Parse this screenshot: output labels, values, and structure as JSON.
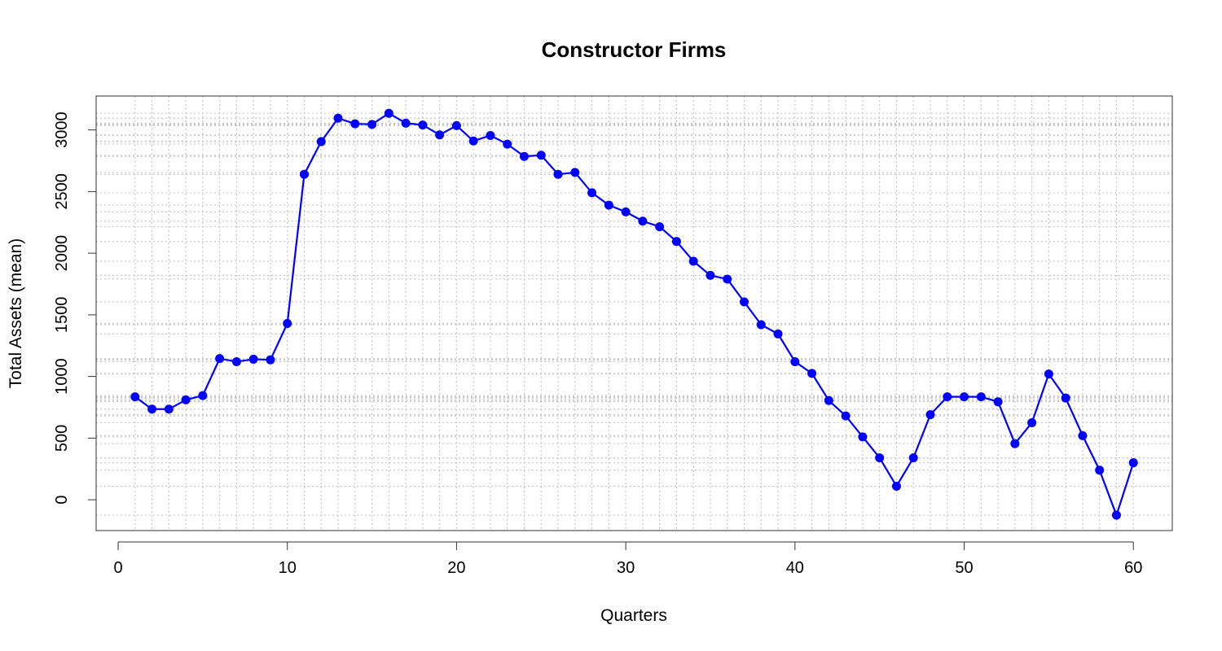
{
  "chart_data": {
    "type": "line",
    "title": "Constructor Firms",
    "xlabel": "Quarters",
    "ylabel": "Total Assets (mean)",
    "xlim": [
      -1.3,
      62.3
    ],
    "ylim": [
      -250,
      3275
    ],
    "x_ticks": [
      0,
      10,
      20,
      30,
      40,
      50,
      60
    ],
    "y_ticks": [
      0,
      500,
      1000,
      1500,
      2000,
      2500,
      3000
    ],
    "grid": true,
    "grid_style": "dotted light gray at every x value and every y value",
    "legend": "none",
    "series": [
      {
        "color": "#0000ff",
        "marker": "filled-circle",
        "x": [
          1,
          2,
          3,
          4,
          5,
          6,
          7,
          8,
          9,
          10,
          11,
          12,
          13,
          14,
          15,
          16,
          17,
          18,
          19,
          20,
          21,
          22,
          23,
          24,
          25,
          26,
          27,
          28,
          29,
          30,
          31,
          32,
          33,
          34,
          35,
          36,
          37,
          38,
          39,
          40,
          41,
          42,
          43,
          44,
          45,
          46,
          47,
          48,
          49,
          50,
          51,
          52,
          53,
          54,
          55,
          56,
          57,
          58,
          59,
          60
        ],
        "values": [
          835,
          735,
          735,
          810,
          845,
          1145,
          1120,
          1140,
          1135,
          1430,
          2640,
          2905,
          3095,
          3050,
          3045,
          3135,
          3055,
          3040,
          2960,
          3035,
          2910,
          2955,
          2885,
          2785,
          2795,
          2640,
          2655,
          2490,
          2390,
          2335,
          2260,
          2215,
          2095,
          1935,
          1820,
          1790,
          1605,
          1420,
          1345,
          1120,
          1025,
          805,
          680,
          510,
          340,
          110,
          340,
          690,
          835,
          835,
          835,
          795,
          455,
          625,
          1020,
          825,
          520,
          240,
          -125,
          300
        ]
      }
    ]
  }
}
